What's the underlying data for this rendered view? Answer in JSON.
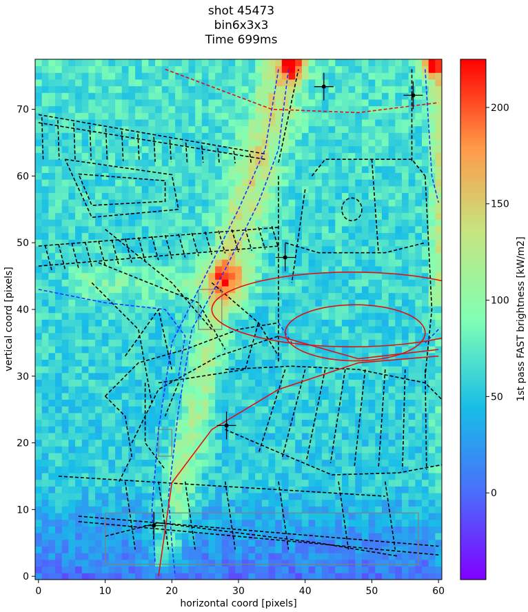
{
  "title_lines": [
    "shot 45473",
    "bin6x3x3",
    "Time 699ms"
  ],
  "chart_data": {
    "type": "heatmap",
    "xlabel": "horizontal coord [pixels]",
    "ylabel": "vertical coord [pixels]",
    "colorbar_label": "1st pass FAST brightness [kW/m2]",
    "xlim": [
      -0.5,
      60.5
    ],
    "ylim": [
      -0.5,
      77.5
    ],
    "xticks": [
      "0",
      "10",
      "20",
      "30",
      "40",
      "50",
      "60"
    ],
    "xtick_values": [
      0,
      10,
      20,
      30,
      40,
      50,
      60
    ],
    "yticks": [
      "0",
      "10",
      "20",
      "30",
      "40",
      "50",
      "60",
      "70"
    ],
    "ytick_values": [
      0,
      10,
      20,
      30,
      40,
      50,
      60,
      70
    ],
    "colorbar_range": [
      -45,
      225
    ],
    "colorbar_ticks": [
      "0",
      "50",
      "100",
      "150",
      "200"
    ],
    "colorbar_tick_values": [
      0,
      50,
      100,
      150,
      200
    ],
    "colormap": "rainbow",
    "grid": false,
    "markers": [
      {
        "x": 42.8,
        "y": 73.4
      },
      {
        "x": 56.2,
        "y": 72.1
      },
      {
        "x": 37.0,
        "y": 47.8
      },
      {
        "x": 28.2,
        "y": 22.6
      },
      {
        "x": 17.3,
        "y": 7.6
      }
    ]
  }
}
